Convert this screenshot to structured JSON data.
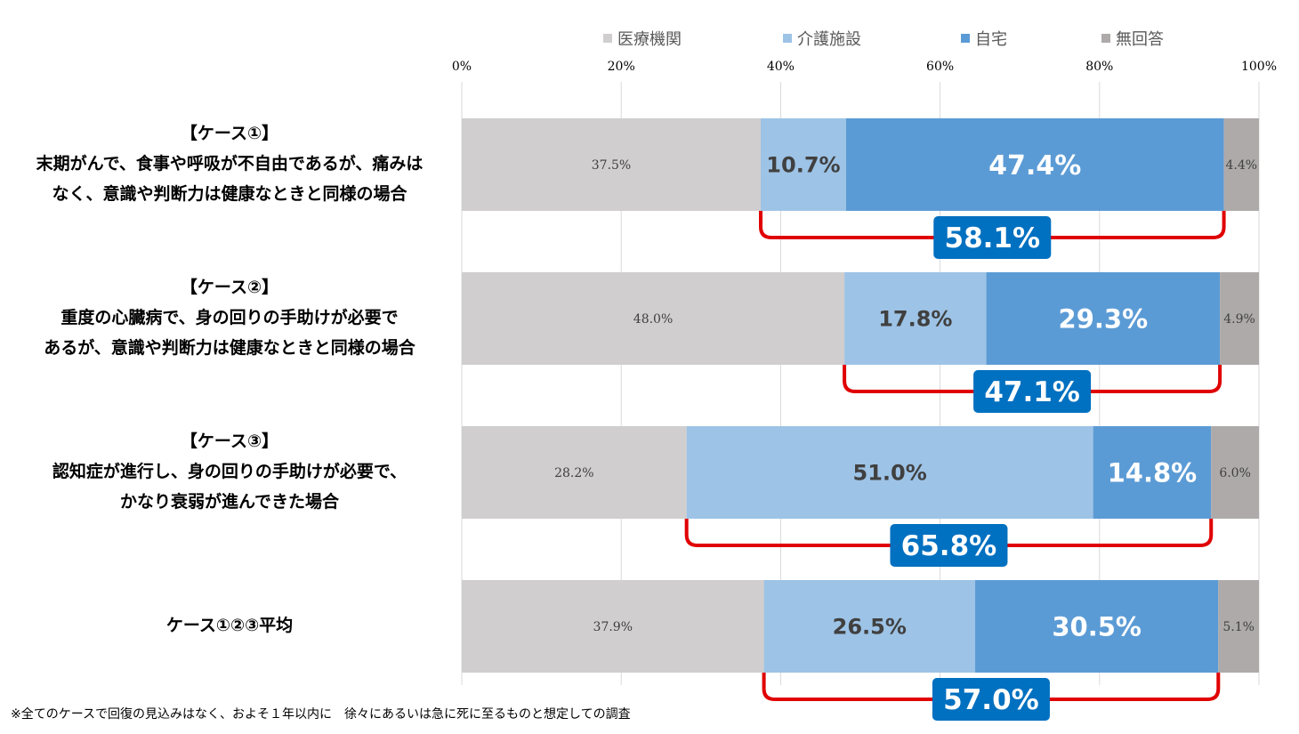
{
  "chart_data": {
    "type": "bar",
    "orientation": "horizontal-stacked-100",
    "categories": [
      [
        "【ケース①】",
        "末期がんで、食事や呼吸が不自由であるが、痛みは",
        "なく、意識や判断力は健康なときと同様の場合"
      ],
      [
        "【ケース②】",
        "重度の心臓病で、身の回りの手助けが必要で",
        "あるが、意識や判断力は健康なときと同様の場合"
      ],
      [
        "【ケース③】",
        "認知症が進行し、身の回りの手助けが必要で、",
        "かなり衰弱が進んできた場合"
      ],
      [
        "ケース①②③平均"
      ]
    ],
    "series": [
      {
        "name": "医療機関",
        "color": "#d0cece",
        "values": [
          37.5,
          48.0,
          28.2,
          37.9
        ],
        "labels": [
          "37.5%",
          "48.0%",
          "28.2%",
          "37.9%"
        ]
      },
      {
        "name": "介護施設",
        "color": "#9dc3e6",
        "values": [
          10.7,
          17.8,
          51.0,
          26.5
        ],
        "labels": [
          "10.7%",
          "17.8%",
          "51.0%",
          "26.5%"
        ]
      },
      {
        "name": "自宅",
        "color": "#5b9bd5",
        "values": [
          47.4,
          29.3,
          14.8,
          30.5
        ],
        "labels": [
          "47.4%",
          "29.3%",
          "14.8%",
          "30.5%"
        ]
      },
      {
        "name": "無回答",
        "color": "#aeaaaa",
        "values": [
          4.4,
          4.9,
          6.0,
          5.1
        ],
        "labels": [
          "4.4%",
          "4.9%",
          "6.0%",
          "5.1%"
        ]
      }
    ],
    "bracket_totals": [
      "58.1%",
      "47.1%",
      "65.8%",
      "57.0%"
    ],
    "bracket_color": "#e00000",
    "badge_color": "#0070c0",
    "xlim": [
      0,
      100
    ],
    "x_ticks": [
      "0%",
      "20%",
      "40%",
      "60%",
      "80%",
      "100%"
    ],
    "legend_position": "top",
    "grid": true
  },
  "footnote": "※全てのケースで回復の見込みはなく、およそ１年以内に　徐々にあるいは急に死に至るものと想定しての調査"
}
